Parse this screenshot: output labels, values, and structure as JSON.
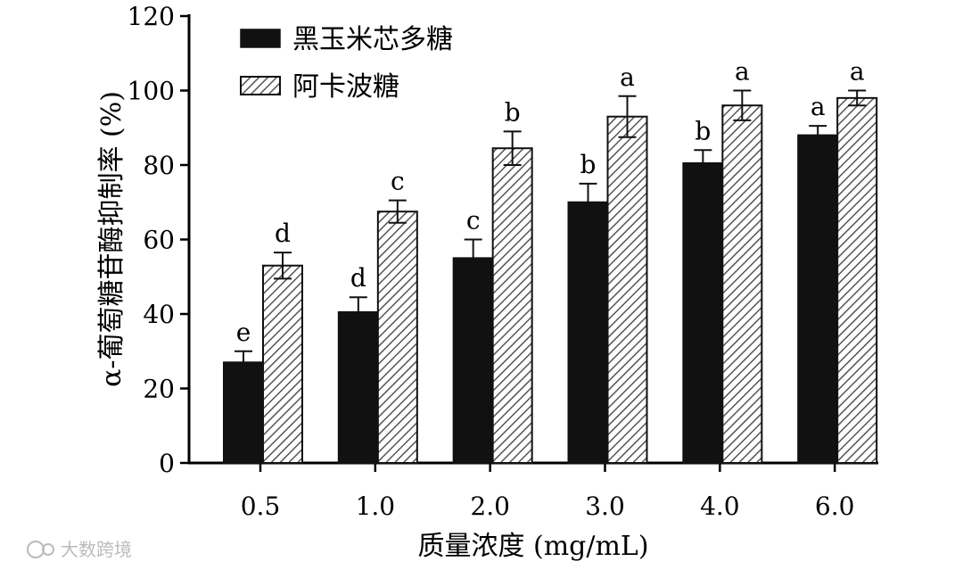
{
  "chart_data": {
    "type": "bar",
    "categories": [
      "0.5",
      "1.0",
      "2.0",
      "3.0",
      "4.0",
      "6.0"
    ],
    "series": [
      {
        "name": "黑玉米芯多糖",
        "values": [
          27,
          40.5,
          55,
          70,
          80.5,
          88
        ],
        "errors": [
          3,
          4,
          5,
          5,
          3.5,
          2.5
        ],
        "labels": [
          "e",
          "d",
          "c",
          "b",
          "b",
          "a"
        ],
        "color": "#111111",
        "pattern": "solid"
      },
      {
        "name": "阿卡波糖",
        "values": [
          53,
          67.5,
          84.5,
          93,
          96,
          98
        ],
        "errors": [
          3.5,
          3,
          4.5,
          5.5,
          4,
          2
        ],
        "labels": [
          "d",
          "c",
          "b",
          "a",
          "a",
          "a"
        ],
        "color": "#111111",
        "pattern": "hatched"
      }
    ],
    "xlabel": "质量浓度 (mg/mL)",
    "ylabel": "α-葡萄糖苷酶抑制率 (%)",
    "ylim": [
      0,
      120
    ],
    "yticks": [
      "0",
      "20",
      "40",
      "60",
      "80",
      "100",
      "120"
    ],
    "grid": false,
    "legend": "top-left"
  },
  "watermark": "大数跨境"
}
